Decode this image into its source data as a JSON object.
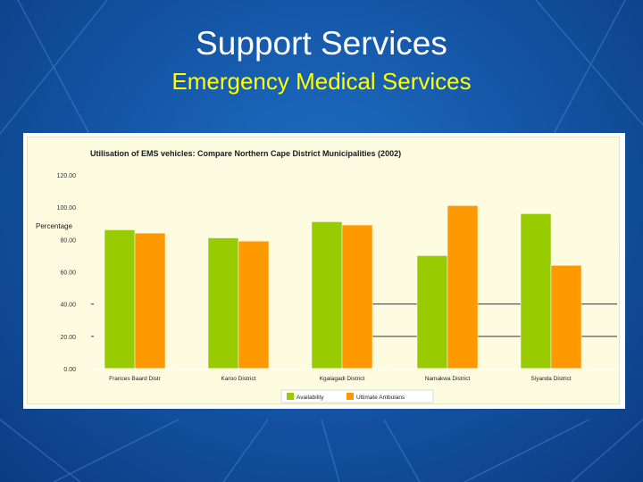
{
  "slide": {
    "title": "Support Services",
    "subtitle": "Emergency Medical Services"
  },
  "chart_data": {
    "type": "bar",
    "title": "Utilisation of EMS vehicles: Compare Northern Cape District Municipalities (2002)",
    "ylabel": "Percentage",
    "xlabel": "",
    "ylim": [
      0,
      120
    ],
    "ytick_labels": [
      "0.00",
      "20.00",
      "40.00",
      "60.00",
      "80.00",
      "100.00",
      "120.00"
    ],
    "categories": [
      "Frances Baard Distr",
      "Karoo District",
      "Kgalagadi District",
      "Namakwa District",
      "Siyanda District"
    ],
    "series": [
      {
        "name": "Availability",
        "color": "#99cc00",
        "values": [
          86,
          81,
          91,
          70,
          96
        ]
      },
      {
        "name": "Ultimate Ambulans",
        "color": "#ff9900",
        "values": [
          84,
          79,
          89,
          101,
          64
        ]
      }
    ],
    "legend_position": "bottom-center",
    "grid": false
  }
}
